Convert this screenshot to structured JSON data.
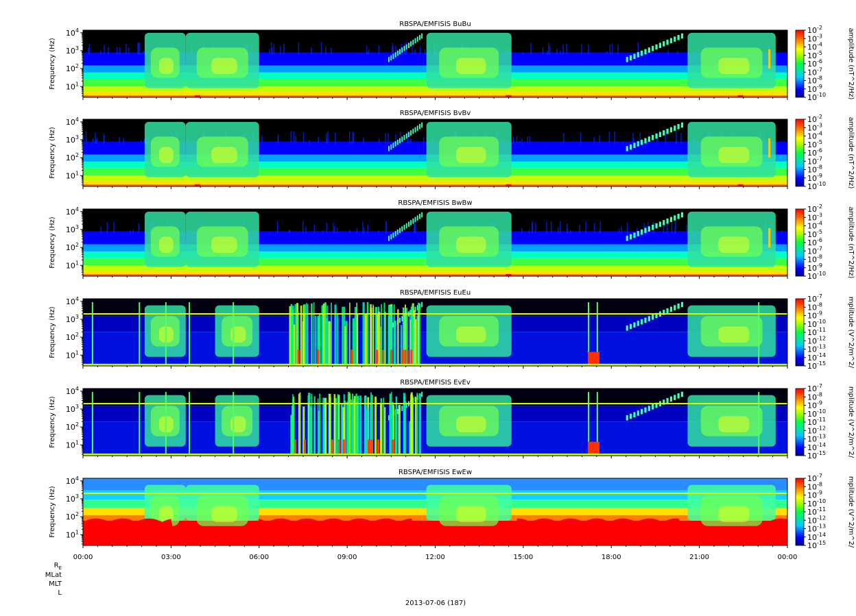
{
  "chart_data": [
    {
      "type": "heatmap",
      "title": "RBSPA/EMFISIS  BuBu",
      "ylabel": "Frequency (Hz)",
      "yscale": "log",
      "ylim": [
        2.5,
        14000
      ],
      "yticks": [
        "10^1",
        "10^2",
        "10^3",
        "10^4"
      ],
      "colorbar": {
        "label": "amplitude (nT^2/Hz)",
        "scale": "log",
        "range_exp": [
          -10,
          -2
        ],
        "ticks": [
          "10^-2",
          "10^-3",
          "10^-4",
          "10^-5",
          "10^-6",
          "10^-7",
          "10^-8",
          "10^-9",
          "10^-10"
        ]
      },
      "dark_activity": [
        [
          2.1,
          3.5
        ],
        [
          3.5,
          6.0
        ],
        [
          11.7,
          14.6
        ],
        [
          20.6,
          23.6
        ]
      ],
      "chorus_rise": [
        [
          10.4,
          11.6
        ],
        [
          18.5,
          20.5
        ]
      ],
      "lines": [
        {
          "hour": 23.35,
          "low": 100,
          "high": 1200
        }
      ],
      "enhanced_lowfreq_spots": [
        3.9,
        22.4,
        14.5
      ],
      "base_colormap": "frequency-graded: red near 3 Hz, yellow, green near 30 Hz, blue up to ~800 Hz, black above"
    },
    {
      "type": "heatmap",
      "title": "RBSPA/EMFISIS  BvBv",
      "ylabel": "Frequency (Hz)",
      "yscale": "log",
      "ylim": [
        2.5,
        14000
      ],
      "yticks": [
        "10^1",
        "10^2",
        "10^3",
        "10^4"
      ],
      "colorbar": {
        "label": "amplitude (nT^2/Hz)",
        "scale": "log",
        "range_exp": [
          -10,
          -2
        ],
        "ticks": [
          "10^-2",
          "10^-3",
          "10^-4",
          "10^-5",
          "10^-6",
          "10^-7",
          "10^-8",
          "10^-9",
          "10^-10"
        ]
      },
      "dark_activity": [
        [
          2.1,
          3.5
        ],
        [
          3.5,
          6.0
        ],
        [
          11.7,
          14.6
        ],
        [
          20.6,
          23.6
        ]
      ],
      "chorus_rise": [
        [
          10.4,
          11.6
        ],
        [
          18.5,
          20.5
        ]
      ],
      "lines": [
        {
          "hour": 23.35,
          "low": 100,
          "high": 1200
        }
      ],
      "enhanced_lowfreq_spots": [
        3.9,
        22.4,
        14.5
      ],
      "base_colormap": "same as BuBu"
    },
    {
      "type": "heatmap",
      "title": "RBSPA/EMFISIS  BwBw",
      "ylabel": "Frequency (Hz)",
      "yscale": "log",
      "ylim": [
        2.5,
        14000
      ],
      "yticks": [
        "10^1",
        "10^2",
        "10^3",
        "10^4"
      ],
      "colorbar": {
        "label": "amplitude (nT^2/Hz)",
        "scale": "log",
        "range_exp": [
          -10,
          -2
        ],
        "ticks": [
          "10^-2",
          "10^-3",
          "10^-4",
          "10^-5",
          "10^-6",
          "10^-7",
          "10^-8",
          "10^-9",
          "10^-10"
        ]
      },
      "dark_activity": [
        [
          2.1,
          3.5
        ],
        [
          3.5,
          6.0
        ],
        [
          11.7,
          14.6
        ],
        [
          20.6,
          23.6
        ]
      ],
      "chorus_rise": [
        [
          10.4,
          11.6
        ],
        [
          18.5,
          20.5
        ]
      ],
      "lines": [
        {
          "hour": 23.35,
          "low": 100,
          "high": 1200
        }
      ],
      "enhanced_lowfreq_spots": [
        14.5
      ],
      "base_colormap": "same as BuBu, slightly weaker"
    },
    {
      "type": "heatmap",
      "title": "RBSPA/EMFISIS  EuEu",
      "ylabel": "Frequency (Hz)",
      "yscale": "log",
      "ylim": [
        2.5,
        14000
      ],
      "yticks": [
        "10^1",
        "10^2",
        "10^3",
        "10^4"
      ],
      "colorbar": {
        "label": "mplitude (V^2/m^2/",
        "scale": "log",
        "range_exp": [
          -15,
          -7
        ],
        "ticks": [
          "10^-7",
          "10^-8",
          "10^-9",
          "10^-10",
          "10^-11",
          "10^-12",
          "10^-13",
          "10^-14",
          "10^-15"
        ]
      },
      "horizontal_line_hz": 2000,
      "spiky_interval_hours": [
        7.0,
        11.5
      ],
      "spike_hours": [
        0.3,
        1.9,
        2.8,
        3.6,
        5.1,
        17.2,
        17.5,
        23.0
      ],
      "dark_activity": [
        [
          2.1,
          3.5
        ],
        [
          4.5,
          6.0
        ],
        [
          11.7,
          14.6
        ],
        [
          20.6,
          23.6
        ]
      ],
      "chorus_rise": [
        [
          10.4,
          11.6
        ],
        [
          18.5,
          20.5
        ]
      ],
      "base_colormap": "dark blue background with black above 1 kHz, green/yellow broadband bursts"
    },
    {
      "type": "heatmap",
      "title": "RBSPA/EMFISIS  EvEv",
      "ylabel": "Frequency (Hz)",
      "yscale": "log",
      "ylim": [
        2.5,
        14000
      ],
      "yticks": [
        "10^1",
        "10^2",
        "10^3",
        "10^4"
      ],
      "colorbar": {
        "label": "mplitude (V^2/m^2/",
        "scale": "log",
        "range_exp": [
          -15,
          -7
        ],
        "ticks": [
          "10^-7",
          "10^-8",
          "10^-9",
          "10^-10",
          "10^-11",
          "10^-12",
          "10^-13",
          "10^-14",
          "10^-15"
        ]
      },
      "horizontal_line_hz": 2000,
      "spiky_interval_hours": [
        7.0,
        11.5
      ],
      "spike_hours": [
        0.3,
        1.9,
        2.8,
        3.6,
        5.1,
        17.2,
        17.5,
        23.0
      ],
      "dark_activity": [
        [
          2.1,
          3.5
        ],
        [
          4.5,
          6.0
        ],
        [
          11.7,
          14.6
        ],
        [
          20.6,
          23.6
        ]
      ],
      "chorus_rise": [
        [
          10.4,
          11.6
        ],
        [
          18.5,
          20.5
        ]
      ],
      "base_colormap": "same as EuEu"
    },
    {
      "type": "heatmap",
      "title": "RBSPA/EMFISIS  EwEw",
      "ylabel": "Frequency (Hz)",
      "yscale": "log",
      "ylim": [
        2.5,
        14000
      ],
      "yticks": [
        "10^1",
        "10^2",
        "10^3",
        "10^4"
      ],
      "colorbar": {
        "label": "mplitude (V^2/m^2/",
        "scale": "log",
        "range_exp": [
          -15,
          -7
        ],
        "ticks": [
          "10^-7",
          "10^-8",
          "10^-9",
          "10^-10",
          "10^-11",
          "10^-12",
          "10^-13",
          "10^-14",
          "10^-15"
        ]
      },
      "horizontal_line_hz": 2000,
      "dark_activity": [
        [
          2.1,
          3.5
        ],
        [
          3.5,
          6.0
        ],
        [
          11.7,
          14.6
        ],
        [
          20.6,
          23.6
        ]
      ],
      "red_floor": "red below ~50 Hz, lowered to ~8 Hz near 03-06h, 11-15h and 20-23h",
      "base_colormap": "cyan/blue top, red bottom with scalloped boundary"
    }
  ],
  "xaxis": {
    "ticks": [
      "00:00",
      "03:00",
      "06:00",
      "09:00",
      "12:00",
      "15:00",
      "18:00",
      "21:00",
      "00:00"
    ],
    "range_hours": [
      0,
      24
    ]
  },
  "ephemeris_labels": [
    "RE",
    "MLat",
    "MLT",
    "L"
  ],
  "date_label": "2013-07-06 (187)"
}
